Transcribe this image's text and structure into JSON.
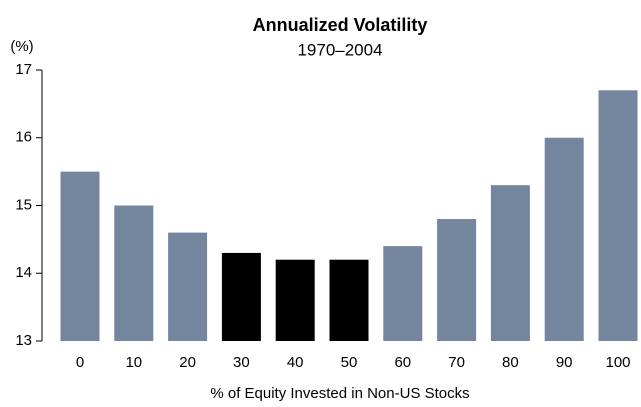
{
  "chart_data": {
    "type": "bar",
    "title": "Annualized Volatility",
    "subtitle": "1970–2004",
    "y_unit": "(%)",
    "x_label": "% of Equity Invested in Non-US Stocks",
    "categories": [
      "0",
      "10",
      "20",
      "30",
      "40",
      "50",
      "60",
      "70",
      "80",
      "90",
      "100"
    ],
    "values": [
      15.5,
      15.0,
      14.6,
      14.3,
      14.2,
      14.2,
      14.4,
      14.8,
      15.3,
      16.0,
      16.7
    ],
    "colors": [
      "#74869e",
      "#74869e",
      "#74869e",
      "#000000",
      "#000000",
      "#000000",
      "#74869e",
      "#74869e",
      "#74869e",
      "#74869e",
      "#74869e"
    ],
    "ylim": [
      13,
      17
    ],
    "yticks": [
      13,
      14,
      15,
      16,
      17
    ],
    "grid": false
  }
}
